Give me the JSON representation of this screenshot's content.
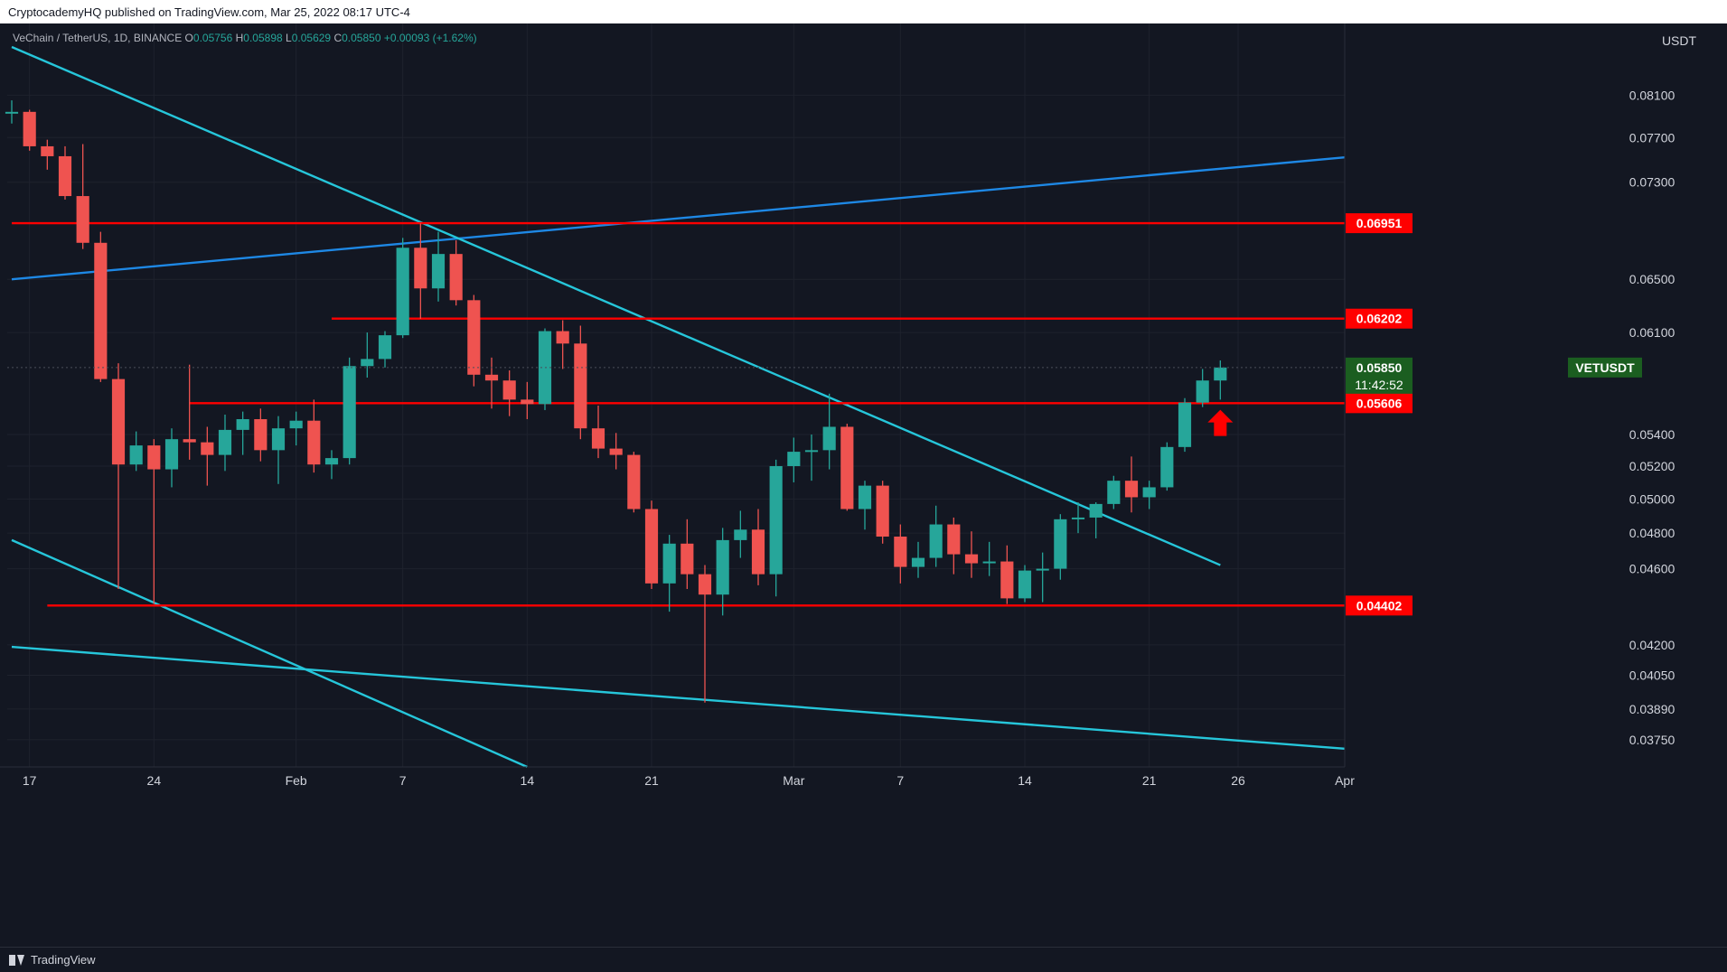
{
  "header": {
    "publisher": "CryptocademyHQ published on TradingView.com, Mar 25, 2022 08:17 UTC-4"
  },
  "legend": {
    "symbol": "VeChain / TetherUS, 1D, BINANCE",
    "o_label": "O",
    "o": "0.05756",
    "h_label": "H",
    "h": "0.05898",
    "l_label": "L",
    "l": "0.05629",
    "c_label": "C",
    "c": "0.05850",
    "change": "+0.00093 (+1.62%)"
  },
  "currency": "USDT",
  "footer": {
    "brand": "TradingView"
  },
  "chart_data": {
    "type": "candlestick",
    "y_scale": "log",
    "ylim": [
      0.0363,
      0.0858
    ],
    "y_ticks": [
      "0.08100",
      "0.07700",
      "0.07300",
      "0.06500",
      "0.06100",
      "0.05400",
      "0.05200",
      "0.05000",
      "0.04800",
      "0.04600",
      "0.04200",
      "0.04050",
      "0.03890",
      "0.03750"
    ],
    "x_ticks": [
      {
        "label": "17",
        "date": "2022-01-17"
      },
      {
        "label": "24",
        "date": "2022-01-24"
      },
      {
        "label": "Feb",
        "date": "2022-02-01"
      },
      {
        "label": "7",
        "date": "2022-02-07"
      },
      {
        "label": "14",
        "date": "2022-02-14"
      },
      {
        "label": "21",
        "date": "2022-02-21"
      },
      {
        "label": "Mar",
        "date": "2022-03-01"
      },
      {
        "label": "7",
        "date": "2022-03-07"
      },
      {
        "label": "14",
        "date": "2022-03-14"
      },
      {
        "label": "21",
        "date": "2022-03-21"
      },
      {
        "label": "26",
        "date": "2022-03-26"
      },
      {
        "label": "Apr",
        "date": "2022-04-01"
      }
    ],
    "xlim": [
      "2022-01-16",
      "2022-04-01"
    ],
    "candles": [
      {
        "date": "2022-01-16",
        "o": 0.0794,
        "h": 0.0805,
        "l": 0.0783,
        "c": 0.0794
      },
      {
        "date": "2022-01-17",
        "o": 0.0794,
        "h": 0.0796,
        "l": 0.0758,
        "c": 0.0762
      },
      {
        "date": "2022-01-18",
        "o": 0.0762,
        "h": 0.0768,
        "l": 0.0741,
        "c": 0.0753
      },
      {
        "date": "2022-01-19",
        "o": 0.0753,
        "h": 0.0762,
        "l": 0.0715,
        "c": 0.0718
      },
      {
        "date": "2022-01-20",
        "o": 0.0718,
        "h": 0.0764,
        "l": 0.0674,
        "c": 0.0679
      },
      {
        "date": "2022-01-21",
        "o": 0.0679,
        "h": 0.0688,
        "l": 0.0575,
        "c": 0.0577
      },
      {
        "date": "2022-01-22",
        "o": 0.0577,
        "h": 0.0588,
        "l": 0.0449,
        "c": 0.0521
      },
      {
        "date": "2022-01-23",
        "o": 0.0521,
        "h": 0.0542,
        "l": 0.0517,
        "c": 0.0533
      },
      {
        "date": "2022-01-24",
        "o": 0.0533,
        "h": 0.0537,
        "l": 0.0441,
        "c": 0.0518
      },
      {
        "date": "2022-01-25",
        "o": 0.0518,
        "h": 0.0544,
        "l": 0.0507,
        "c": 0.0537
      },
      {
        "date": "2022-01-26",
        "o": 0.0537,
        "h": 0.0587,
        "l": 0.0524,
        "c": 0.0535
      },
      {
        "date": "2022-01-27",
        "o": 0.0535,
        "h": 0.0545,
        "l": 0.0508,
        "c": 0.0527
      },
      {
        "date": "2022-01-28",
        "o": 0.0527,
        "h": 0.0553,
        "l": 0.0517,
        "c": 0.0543
      },
      {
        "date": "2022-01-29",
        "o": 0.0543,
        "h": 0.0555,
        "l": 0.0527,
        "c": 0.055
      },
      {
        "date": "2022-01-30",
        "o": 0.055,
        "h": 0.0557,
        "l": 0.0523,
        "c": 0.053
      },
      {
        "date": "2022-01-31",
        "o": 0.053,
        "h": 0.0552,
        "l": 0.0509,
        "c": 0.0544
      },
      {
        "date": "2022-02-01",
        "o": 0.0544,
        "h": 0.0555,
        "l": 0.0533,
        "c": 0.0549
      },
      {
        "date": "2022-02-02",
        "o": 0.0549,
        "h": 0.0563,
        "l": 0.0516,
        "c": 0.0521
      },
      {
        "date": "2022-02-03",
        "o": 0.0521,
        "h": 0.053,
        "l": 0.0512,
        "c": 0.0525
      },
      {
        "date": "2022-02-04",
        "o": 0.0525,
        "h": 0.0592,
        "l": 0.0521,
        "c": 0.0586
      },
      {
        "date": "2022-02-05",
        "o": 0.0586,
        "h": 0.061,
        "l": 0.0578,
        "c": 0.0591
      },
      {
        "date": "2022-02-06",
        "o": 0.0591,
        "h": 0.0611,
        "l": 0.0585,
        "c": 0.0608
      },
      {
        "date": "2022-02-07",
        "o": 0.0608,
        "h": 0.0683,
        "l": 0.0606,
        "c": 0.0675
      },
      {
        "date": "2022-02-08",
        "o": 0.0675,
        "h": 0.0695,
        "l": 0.062,
        "c": 0.0643
      },
      {
        "date": "2022-02-09",
        "o": 0.0643,
        "h": 0.0688,
        "l": 0.0633,
        "c": 0.067
      },
      {
        "date": "2022-02-10",
        "o": 0.067,
        "h": 0.0681,
        "l": 0.063,
        "c": 0.0634
      },
      {
        "date": "2022-02-11",
        "o": 0.0634,
        "h": 0.0638,
        "l": 0.0572,
        "c": 0.058
      },
      {
        "date": "2022-02-12",
        "o": 0.058,
        "h": 0.0592,
        "l": 0.0557,
        "c": 0.0576
      },
      {
        "date": "2022-02-13",
        "o": 0.0576,
        "h": 0.0583,
        "l": 0.0552,
        "c": 0.0563
      },
      {
        "date": "2022-02-14",
        "o": 0.0563,
        "h": 0.0575,
        "l": 0.055,
        "c": 0.056
      },
      {
        "date": "2022-02-15",
        "o": 0.056,
        "h": 0.0613,
        "l": 0.0556,
        "c": 0.0611
      },
      {
        "date": "2022-02-16",
        "o": 0.0611,
        "h": 0.0619,
        "l": 0.0584,
        "c": 0.0602
      },
      {
        "date": "2022-02-17",
        "o": 0.0602,
        "h": 0.0615,
        "l": 0.0537,
        "c": 0.0544
      },
      {
        "date": "2022-02-18",
        "o": 0.0544,
        "h": 0.0559,
        "l": 0.0525,
        "c": 0.0531
      },
      {
        "date": "2022-02-19",
        "o": 0.0531,
        "h": 0.0541,
        "l": 0.0518,
        "c": 0.0527
      },
      {
        "date": "2022-02-20",
        "o": 0.0527,
        "h": 0.0529,
        "l": 0.0492,
        "c": 0.0494
      },
      {
        "date": "2022-02-21",
        "o": 0.0494,
        "h": 0.0499,
        "l": 0.0449,
        "c": 0.0452
      },
      {
        "date": "2022-02-22",
        "o": 0.0452,
        "h": 0.0479,
        "l": 0.0437,
        "c": 0.0474
      },
      {
        "date": "2022-02-23",
        "o": 0.0474,
        "h": 0.0488,
        "l": 0.0449,
        "c": 0.0457
      },
      {
        "date": "2022-02-24",
        "o": 0.0457,
        "h": 0.0462,
        "l": 0.0392,
        "c": 0.0446
      },
      {
        "date": "2022-02-25",
        "o": 0.0446,
        "h": 0.0483,
        "l": 0.0435,
        "c": 0.0476
      },
      {
        "date": "2022-02-26",
        "o": 0.0476,
        "h": 0.0493,
        "l": 0.0466,
        "c": 0.0482
      },
      {
        "date": "2022-02-27",
        "o": 0.0482,
        "h": 0.0494,
        "l": 0.0451,
        "c": 0.0457
      },
      {
        "date": "2022-02-28",
        "o": 0.0457,
        "h": 0.0524,
        "l": 0.0445,
        "c": 0.052
      },
      {
        "date": "2022-03-01",
        "o": 0.052,
        "h": 0.0538,
        "l": 0.051,
        "c": 0.0529
      },
      {
        "date": "2022-03-02",
        "o": 0.0529,
        "h": 0.054,
        "l": 0.0511,
        "c": 0.053
      },
      {
        "date": "2022-03-03",
        "o": 0.053,
        "h": 0.0567,
        "l": 0.0518,
        "c": 0.0545
      },
      {
        "date": "2022-03-04",
        "o": 0.0545,
        "h": 0.0547,
        "l": 0.0493,
        "c": 0.0494
      },
      {
        "date": "2022-03-05",
        "o": 0.0494,
        "h": 0.0511,
        "l": 0.0482,
        "c": 0.0508
      },
      {
        "date": "2022-03-06",
        "o": 0.0508,
        "h": 0.0511,
        "l": 0.0474,
        "c": 0.0478
      },
      {
        "date": "2022-03-07",
        "o": 0.0478,
        "h": 0.0485,
        "l": 0.0452,
        "c": 0.0461
      },
      {
        "date": "2022-03-08",
        "o": 0.0461,
        "h": 0.0475,
        "l": 0.0455,
        "c": 0.0466
      },
      {
        "date": "2022-03-09",
        "o": 0.0466,
        "h": 0.0496,
        "l": 0.0461,
        "c": 0.0485
      },
      {
        "date": "2022-03-10",
        "o": 0.0485,
        "h": 0.0489,
        "l": 0.0457,
        "c": 0.0468
      },
      {
        "date": "2022-03-11",
        "o": 0.0468,
        "h": 0.0481,
        "l": 0.0455,
        "c": 0.0463
      },
      {
        "date": "2022-03-12",
        "o": 0.0463,
        "h": 0.0475,
        "l": 0.0456,
        "c": 0.0464
      },
      {
        "date": "2022-03-13",
        "o": 0.0464,
        "h": 0.0473,
        "l": 0.0441,
        "c": 0.0444
      },
      {
        "date": "2022-03-14",
        "o": 0.0444,
        "h": 0.0462,
        "l": 0.0442,
        "c": 0.0459
      },
      {
        "date": "2022-03-15",
        "o": 0.0459,
        "h": 0.0469,
        "l": 0.0442,
        "c": 0.046
      },
      {
        "date": "2022-03-16",
        "o": 0.046,
        "h": 0.0491,
        "l": 0.0454,
        "c": 0.0488
      },
      {
        "date": "2022-03-17",
        "o": 0.0488,
        "h": 0.0498,
        "l": 0.048,
        "c": 0.0489
      },
      {
        "date": "2022-03-18",
        "o": 0.0489,
        "h": 0.0498,
        "l": 0.0477,
        "c": 0.0497
      },
      {
        "date": "2022-03-19",
        "o": 0.0497,
        "h": 0.0514,
        "l": 0.0494,
        "c": 0.0511
      },
      {
        "date": "2022-03-20",
        "o": 0.0511,
        "h": 0.0526,
        "l": 0.0492,
        "c": 0.0501
      },
      {
        "date": "2022-03-21",
        "o": 0.0501,
        "h": 0.0511,
        "l": 0.0494,
        "c": 0.0507
      },
      {
        "date": "2022-03-22",
        "o": 0.0507,
        "h": 0.0535,
        "l": 0.0505,
        "c": 0.0532
      },
      {
        "date": "2022-03-23",
        "o": 0.0532,
        "h": 0.0564,
        "l": 0.0529,
        "c": 0.0561
      },
      {
        "date": "2022-03-24",
        "o": 0.0561,
        "h": 0.0584,
        "l": 0.0558,
        "c": 0.0576
      },
      {
        "date": "2022-03-25",
        "o": 0.0576,
        "h": 0.059,
        "l": 0.0563,
        "c": 0.0585
      }
    ],
    "horizontal_levels": [
      {
        "value": 0.06951,
        "label": "0.06951",
        "from": "2022-01-16"
      },
      {
        "value": 0.06202,
        "label": "0.06202",
        "from": "2022-02-03"
      },
      {
        "value": 0.05606,
        "label": "0.05606",
        "from": "2022-01-26"
      },
      {
        "value": 0.04402,
        "label": "0.04402",
        "from": "2022-01-18"
      }
    ],
    "trend_lines": [
      {
        "color": "#1e88e5",
        "points": [
          [
            "2022-01-16",
            0.065
          ],
          [
            "2022-04-01",
            0.0752
          ]
        ]
      },
      {
        "color": "#26c6da",
        "points": [
          [
            "2022-01-16",
            0.0858
          ],
          [
            "2022-03-25",
            0.0462
          ]
        ]
      },
      {
        "color": "#26c6da",
        "points": [
          [
            "2022-01-16",
            0.0476
          ],
          [
            "2022-02-14",
            0.0363
          ]
        ]
      },
      {
        "color": "#26c6da",
        "points": [
          [
            "2022-01-16",
            0.0419
          ],
          [
            "2022-04-01",
            0.0371
          ]
        ]
      }
    ],
    "last_price": {
      "symbol": "VETUSDT",
      "value": "0.05850",
      "countdown": "11:42:52",
      "price": 0.0585
    },
    "arrow": {
      "date": "2022-03-25",
      "value": 0.0552,
      "color": "#ff0000"
    },
    "colors": {
      "up": "#26a69a",
      "down": "#ef5350",
      "level": "#ff0000",
      "grid": "#1e222d"
    }
  }
}
